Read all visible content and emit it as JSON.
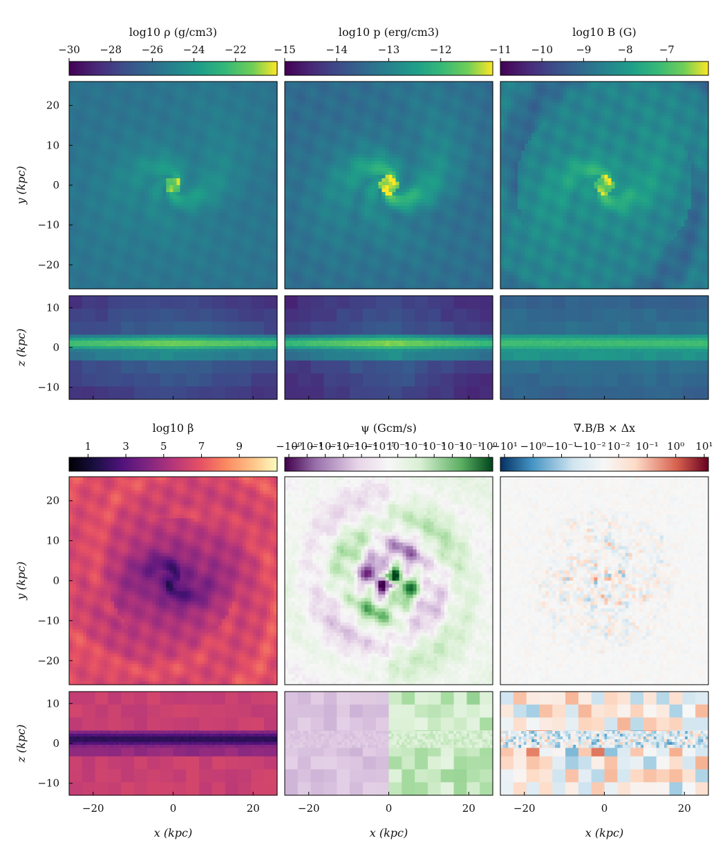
{
  "chart_data": {
    "type": "heatmap",
    "layout": "two blocks of three columns; each block has a face-on (x-y) map above an edge-on (x-z) map",
    "xlabel": "x (kpc)",
    "ylabel_faceon": "y (kpc)",
    "ylabel_edgeon": "z (kpc)",
    "x_range": [
      -26,
      26
    ],
    "y_range_faceon": [
      -26,
      26
    ],
    "z_range_edgeon": [
      -13,
      13
    ],
    "x_ticks": [
      "−20",
      "0",
      "20"
    ],
    "x_tick_values": [
      -20,
      0,
      20
    ],
    "y_ticks_faceon": [
      "20",
      "10",
      "0",
      "−10",
      "−20"
    ],
    "y_tick_values_faceon": [
      20,
      10,
      0,
      -10,
      -20
    ],
    "z_ticks_edgeon": [
      "10",
      "0",
      "−10"
    ],
    "z_tick_values_edgeon": [
      10,
      0,
      -10
    ],
    "quantities": [
      {
        "id": "density",
        "colorbar_label": "log10 ρ (g/cm3)",
        "colormap": "viridis",
        "range": [
          -30,
          -20
        ],
        "tick_labels": [
          "−30",
          "−28",
          "−26",
          "−24",
          "−22"
        ],
        "tick_values": [
          -30,
          -28,
          -26,
          -24,
          -22
        ]
      },
      {
        "id": "pressure",
        "colorbar_label": "log10 p (erg/cm3)",
        "colormap": "viridis",
        "range": [
          -15,
          -11
        ],
        "tick_labels": [
          "−15",
          "−14",
          "−13",
          "−12"
        ],
        "tick_values": [
          -15,
          -14,
          -13,
          -12
        ]
      },
      {
        "id": "magnetic-field",
        "colorbar_label": "log10 B (G)",
        "colormap": "viridis",
        "range": [
          -11,
          -6
        ],
        "tick_labels": [
          "−11",
          "−10",
          "−9",
          "−8",
          "−7"
        ],
        "tick_values": [
          -11,
          -10,
          -9,
          -8,
          -7
        ]
      },
      {
        "id": "plasma-beta",
        "colorbar_label": "log10 β",
        "colormap": "magma",
        "range": [
          0,
          11
        ],
        "tick_labels": [
          "1",
          "3",
          "5",
          "7",
          "9"
        ],
        "tick_values": [
          1,
          3,
          5,
          7,
          9
        ]
      },
      {
        "id": "psi",
        "colorbar_label": "ψ (Gcm/s)",
        "colormap": "PRGn (diverging, symlog)",
        "range": [
          -1,
          1
        ],
        "tick_labels": [
          "−10⁰",
          "−10⁻¹",
          "−10⁻²",
          "−10⁻³",
          "−10⁻⁴",
          "−10⁻⁵",
          "10⁻⁵",
          "10⁻⁴",
          "10⁻³",
          "10⁻²",
          "10⁻¹",
          "10⁰"
        ],
        "tick_values": [
          -1,
          -0.1,
          -0.01,
          -0.001,
          -0.0001,
          -1e-05,
          1e-05,
          0.0001,
          0.001,
          0.01,
          0.1,
          1
        ]
      },
      {
        "id": "divergence",
        "colorbar_label": "∇.B/B × Δx",
        "colormap": "RdBu_r (diverging, symlog)",
        "range": [
          -10,
          10
        ],
        "tick_labels": [
          "−10¹",
          "−10⁰",
          "−10⁻¹",
          "−10⁻²",
          "10⁻²",
          "10⁻¹",
          "10⁰",
          "10¹"
        ],
        "tick_values": [
          -10,
          -1,
          -0.1,
          -0.01,
          0.01,
          0.1,
          1,
          10
        ]
      }
    ]
  }
}
